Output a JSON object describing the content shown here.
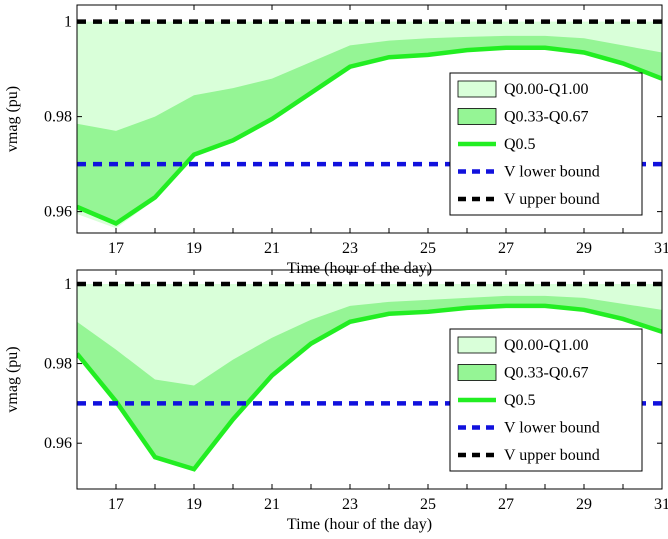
{
  "chart_data": [
    {
      "type": "line",
      "xlabel": "Time (hour of the day)",
      "ylabel": "vmag (pu)",
      "xlim": [
        16,
        31
      ],
      "ylim": [
        0.9555,
        1.0035
      ],
      "xticks": [
        17,
        19,
        21,
        23,
        25,
        27,
        29,
        31
      ],
      "yticks": [
        0.96,
        0.98,
        1
      ],
      "ytick_labels": [
        "0.96",
        "0.98",
        "1"
      ],
      "grid": false,
      "legend_position": "bottom-right",
      "x": [
        16,
        17,
        18,
        19,
        20,
        21,
        22,
        23,
        24,
        25,
        26,
        27,
        28,
        29,
        30,
        31
      ],
      "bands": [
        {
          "name": "Q0.00-Q1.00",
          "color": "#d9ffd9",
          "lower": [
            0.9595,
            0.9565,
            0.9625,
            0.9715,
            0.975,
            0.979,
            0.985,
            0.9905,
            0.9925,
            0.993,
            0.994,
            0.9945,
            0.9945,
            0.9935,
            0.991,
            0.9875
          ],
          "upper": [
            1.0,
            1.0,
            1.0,
            1.0,
            1.0,
            1.0,
            1.0,
            1.0,
            1.0,
            1.0,
            1.0,
            1.0,
            1.0,
            1.0,
            1.0,
            1.0
          ]
        },
        {
          "name": "Q0.33-Q0.67",
          "color": "#95f595",
          "lower": [
            0.9605,
            0.957,
            0.963,
            0.9718,
            0.9752,
            0.9792,
            0.9852,
            0.9908,
            0.9927,
            0.9933,
            0.9942,
            0.9947,
            0.9947,
            0.9937,
            0.9912,
            0.9877
          ],
          "upper": [
            0.9785,
            0.977,
            0.98,
            0.9845,
            0.986,
            0.988,
            0.9915,
            0.995,
            0.996,
            0.9965,
            0.9968,
            0.997,
            0.997,
            0.9965,
            0.995,
            0.9935
          ]
        }
      ],
      "series": [
        {
          "name": "Q0.5",
          "color": "#22ee22",
          "values": [
            0.961,
            0.9575,
            0.963,
            0.972,
            0.975,
            0.9795,
            0.985,
            0.9905,
            0.9925,
            0.993,
            0.994,
            0.9945,
            0.9945,
            0.9935,
            0.9912,
            0.988
          ]
        },
        {
          "name": "V lower bound",
          "color": "#1111dd",
          "dashed": true,
          "values": [
            0.97,
            0.97,
            0.97,
            0.97,
            0.97,
            0.97,
            0.97,
            0.97,
            0.97,
            0.97,
            0.97,
            0.97,
            0.97,
            0.97,
            0.97,
            0.97
          ]
        },
        {
          "name": "V upper bound",
          "color": "#000000",
          "dashed": true,
          "values": [
            1.0,
            1.0,
            1.0,
            1.0,
            1.0,
            1.0,
            1.0,
            1.0,
            1.0,
            1.0,
            1.0,
            1.0,
            1.0,
            1.0,
            1.0,
            1.0
          ]
        }
      ]
    },
    {
      "type": "line",
      "xlabel": "Time (hour of the day)",
      "ylabel": "vmag (pu)",
      "xlim": [
        16,
        31
      ],
      "ylim": [
        0.9485,
        1.0035
      ],
      "xticks": [
        17,
        19,
        21,
        23,
        25,
        27,
        29,
        31
      ],
      "yticks": [
        0.96,
        0.98,
        1
      ],
      "ytick_labels": [
        "0.96",
        "0.98",
        "1"
      ],
      "grid": false,
      "legend_position": "bottom-right",
      "x": [
        16,
        17,
        18,
        19,
        20,
        21,
        22,
        23,
        24,
        25,
        26,
        27,
        28,
        29,
        30,
        31
      ],
      "bands": [
        {
          "name": "Q0.00-Q1.00",
          "color": "#d9ffd9",
          "lower": [
            0.982,
            0.9695,
            0.956,
            0.953,
            0.9655,
            0.9765,
            0.9845,
            0.9905,
            0.9925,
            0.993,
            0.994,
            0.9945,
            0.9945,
            0.9935,
            0.991,
            0.9875
          ],
          "upper": [
            1.0,
            1.0,
            1.0,
            1.0,
            1.0,
            1.0,
            1.0,
            1.0,
            1.0,
            1.0,
            1.0,
            1.0,
            1.0,
            1.0,
            1.0,
            1.0
          ]
        },
        {
          "name": "Q0.33-Q0.67",
          "color": "#95f595",
          "lower": [
            0.9825,
            0.97,
            0.9565,
            0.9535,
            0.966,
            0.9768,
            0.9848,
            0.9908,
            0.9927,
            0.9933,
            0.9942,
            0.9947,
            0.9947,
            0.9937,
            0.9912,
            0.9877
          ],
          "upper": [
            0.9905,
            0.9835,
            0.976,
            0.9745,
            0.981,
            0.9865,
            0.991,
            0.9945,
            0.9955,
            0.996,
            0.9965,
            0.997,
            0.997,
            0.9965,
            0.995,
            0.9935
          ]
        }
      ],
      "series": [
        {
          "name": "Q0.5",
          "color": "#22ee22",
          "values": [
            0.9825,
            0.9705,
            0.9565,
            0.9535,
            0.966,
            0.977,
            0.985,
            0.9905,
            0.9925,
            0.993,
            0.994,
            0.9945,
            0.9945,
            0.9935,
            0.9912,
            0.988
          ]
        },
        {
          "name": "V lower bound",
          "color": "#1111dd",
          "dashed": true,
          "values": [
            0.97,
            0.97,
            0.97,
            0.97,
            0.97,
            0.97,
            0.97,
            0.97,
            0.97,
            0.97,
            0.97,
            0.97,
            0.97,
            0.97,
            0.97,
            0.97
          ]
        },
        {
          "name": "V upper bound",
          "color": "#000000",
          "dashed": true,
          "values": [
            1.0,
            1.0,
            1.0,
            1.0,
            1.0,
            1.0,
            1.0,
            1.0,
            1.0,
            1.0,
            1.0,
            1.0,
            1.0,
            1.0,
            1.0,
            1.0
          ]
        }
      ]
    }
  ]
}
